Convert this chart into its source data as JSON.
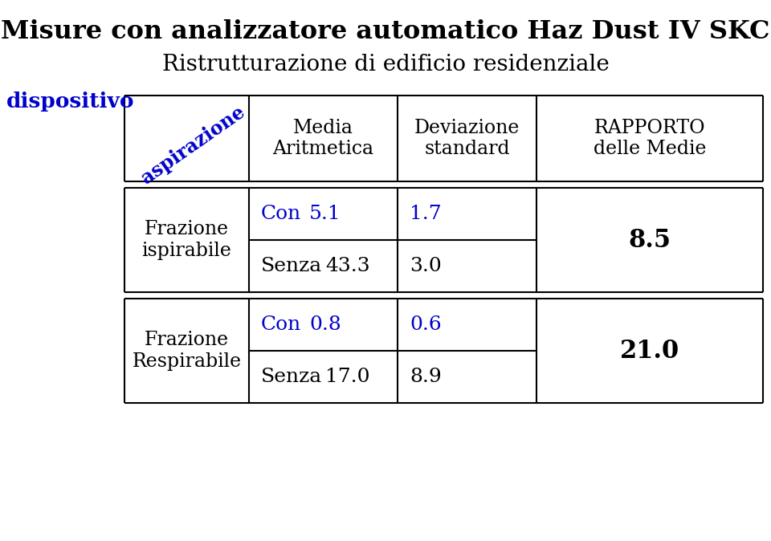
{
  "title_bold": "Misure con analizzatore automatico ",
  "title_normal": "Haz Dust IV SKC",
  "subtitle": "Ristrutturazione di edificio residenziale",
  "dispositivo_label": "dispositivo",
  "header_col0": "aspirazione",
  "header_col1": "Media\nAritmetica",
  "header_col2": "Deviazione\nstandard",
  "header_col3": "RAPPORTO\ndelle Medie",
  "row1_label": "Frazione\nispirabile",
  "row1_sub1": "Con",
  "row1_val1a": "5.1",
  "row1_val1b": "1.7",
  "row1_sub2": "Senza",
  "row1_val2a": "43.3",
  "row1_val2b": "3.0",
  "row1_rapporto": "8.5",
  "row2_label": "Frazione\nRespirabile",
  "row2_sub1": "Con",
  "row2_val1a": "0.8",
  "row2_val1b": "0.6",
  "row2_sub2": "Senza",
  "row2_val2a": "17.0",
  "row2_val2b": "8.9",
  "row2_rapporto": "21.0",
  "blue_color": "#0000CC",
  "black_color": "#000000",
  "bg_color": "#ffffff",
  "title_fontsize": 23,
  "subtitle_fontsize": 20,
  "label_fontsize": 17,
  "cell_fontsize": 18,
  "header_fontsize": 17,
  "rapporto_fontsize": 22
}
